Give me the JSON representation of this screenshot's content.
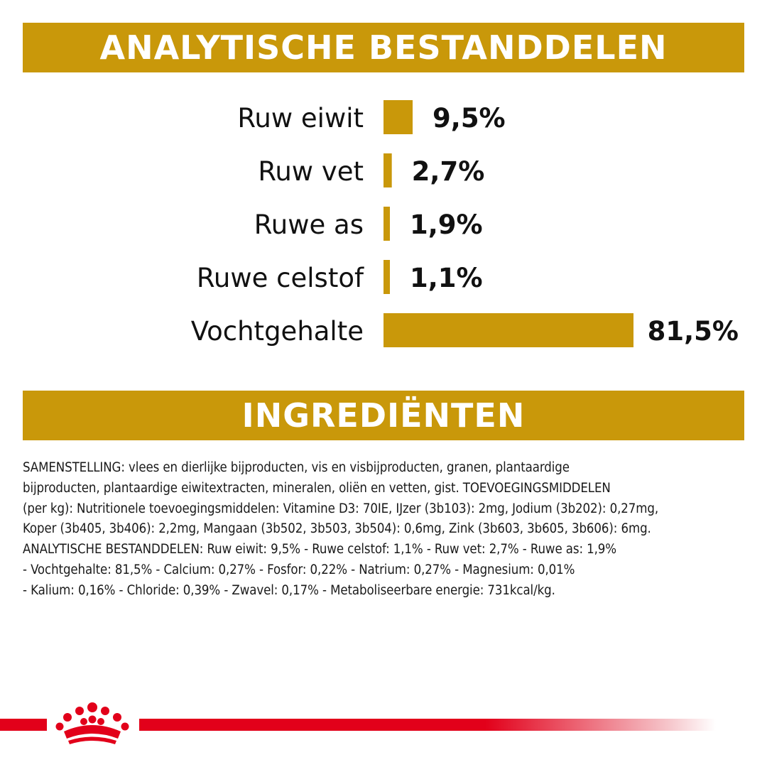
{
  "analysis_header": {
    "title": "ANALYTISCHE BESTANDDELEN"
  },
  "ingredients_header": {
    "title": "INGREDIËNTEN"
  },
  "colors": {
    "brand_gold": "#c9980a",
    "brand_red": "#e2001a",
    "text": "#111111"
  },
  "chart_data": {
    "type": "bar",
    "orientation": "horizontal",
    "categories": [
      "Ruw eiwit",
      "Ruw vet",
      "Ruwe as",
      "Ruwe celstof",
      "Vochtgehalte"
    ],
    "values": [
      9.5,
      2.7,
      1.9,
      1.1,
      81.5
    ],
    "value_labels": [
      "9,5%",
      "2,7%",
      "1,9%",
      "1,1%",
      "81,5%"
    ],
    "unit": "%",
    "title": "ANALYTISCHE BESTANDDELEN",
    "xlabel": "",
    "ylabel": "",
    "grid": false,
    "legend": "none",
    "bar_color": "#c9980a"
  },
  "ingredients": {
    "lines": [
      "SAMENSTELLING: vlees en dierlijke bijproducten, vis en visbijproducten, granen, plantaardige",
      "bijproducten, plantaardige eiwitextracten, mineralen, oliën en vetten, gist. TOEVOEGINGSMIDDELEN",
      "(per kg): Nutritionele toevoegingsmiddelen: Vitamine D3: 70IE, IJzer (3b103): 2mg, Jodium (3b202): 0,27mg,",
      "Koper (3b405, 3b406): 2,2mg, Mangaan (3b502, 3b503, 3b504): 0,6mg, Zink (3b603, 3b605, 3b606): 6mg.",
      "ANALYTISCHE BESTANDDELEN: Ruw eiwit: 9,5% - Ruwe celstof: 1,1% - Ruw vet: 2,7% - Ruwe as: 1,9%",
      "- Vochtgehalte: 81,5% - Calcium: 0,27% - Fosfor: 0,22% - Natrium: 0,27% - Magnesium: 0,01%",
      "- Kalium: 0,16% - Chloride: 0,39% - Zwavel: 0,17% - Metaboliseerbare energie: 731kcal/kg."
    ]
  },
  "footer": {
    "logo_icon": "crown-icon"
  }
}
